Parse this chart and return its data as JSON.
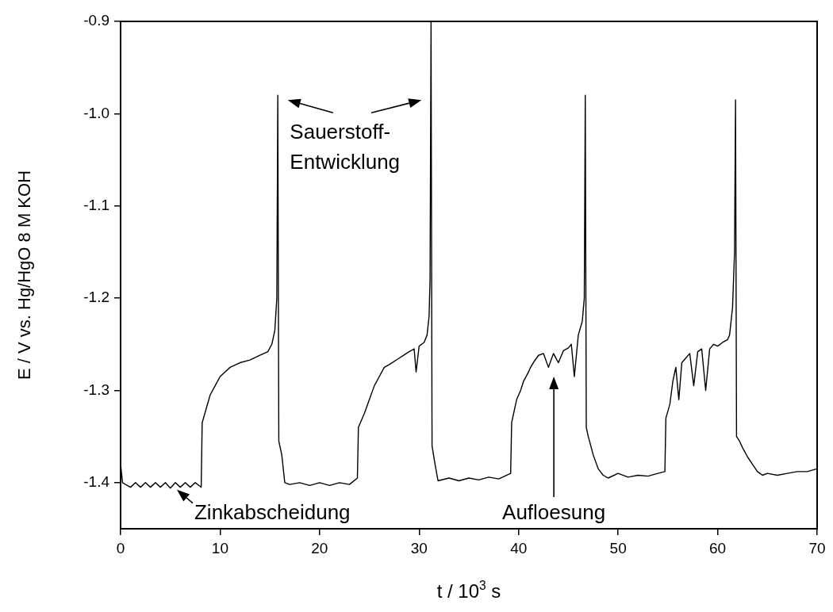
{
  "chart_data": {
    "type": "line",
    "xlabel": "t / 10$^{3}$ s",
    "ylabel": "E / V vs. Hg/HgO 8 M KOH",
    "xlim": [
      0,
      70
    ],
    "ylim": [
      -1.45,
      -0.9
    ],
    "xticks": [
      0,
      10,
      20,
      30,
      40,
      50,
      60,
      70
    ],
    "yticks": [
      -1.4,
      -1.3,
      -1.2,
      -1.1,
      {
        "value": -1,
        "label": "-1.0"
      },
      -0.9
    ],
    "grid": false,
    "legend": false,
    "marker": "none",
    "line_style": "solid",
    "series": [
      {
        "color": "#000000",
        "x": [
          0,
          0.2,
          0.5,
          1,
          1.5,
          2,
          2.5,
          3,
          3.5,
          4,
          4.5,
          5,
          5.5,
          6,
          6.5,
          7,
          7.5,
          8,
          8.1,
          8.2,
          8.6,
          9,
          9.5,
          10,
          10.5,
          11,
          12,
          13,
          14,
          14.8,
          15.2,
          15.5,
          15.7,
          15.8,
          15.9,
          16.2,
          16.5,
          17,
          18,
          19,
          20,
          21,
          22,
          23,
          23.8,
          23.9,
          24.5,
          25,
          25.5,
          26,
          26.5,
          27,
          28,
          29,
          29.5,
          29.7,
          30,
          30.5,
          30.8,
          31,
          31.1,
          31.2,
          31.3,
          31.6,
          31.9,
          33,
          34,
          35,
          36,
          37,
          38,
          39.2,
          39.3,
          39.8,
          40.2,
          40.5,
          41,
          41.2,
          41.6,
          42,
          42.5,
          43,
          43.5,
          44,
          44.5,
          45,
          45.3,
          45.6,
          46,
          46.4,
          46.6,
          46.7,
          46.8,
          47,
          47.5,
          48,
          48.5,
          49,
          50,
          51,
          52,
          53,
          54,
          54.7,
          54.8,
          55.2,
          55.5,
          55.8,
          56.1,
          56.4,
          56.8,
          57.2,
          57.6,
          58,
          58.4,
          58.8,
          59.2,
          59.6,
          60,
          60.5,
          61,
          61.2,
          61.5,
          61.7,
          61.8,
          61.9,
          62.2,
          62.5,
          63,
          63.5,
          64,
          64.5,
          65,
          66,
          67,
          68,
          69,
          70
        ],
        "values": [
          -1.38,
          -1.4,
          -1.402,
          -1.405,
          -1.4,
          -1.405,
          -1.4,
          -1.405,
          -1.4,
          -1.405,
          -1.4,
          -1.406,
          -1.4,
          -1.405,
          -1.4,
          -1.405,
          -1.4,
          -1.404,
          -1.405,
          -1.335,
          -1.32,
          -1.305,
          -1.295,
          -1.285,
          -1.28,
          -1.275,
          -1.27,
          -1.267,
          -1.262,
          -1.258,
          -1.25,
          -1.235,
          -1.2,
          -0.98,
          -1.355,
          -1.37,
          -1.4,
          -1.402,
          -1.4,
          -1.403,
          -1.4,
          -1.403,
          -1.4,
          -1.402,
          -1.395,
          -1.34,
          -1.325,
          -1.31,
          -1.295,
          -1.285,
          -1.275,
          -1.272,
          -1.265,
          -1.258,
          -1.255,
          -1.28,
          -1.252,
          -1.248,
          -1.24,
          -1.22,
          -1.18,
          -0.9,
          -1.36,
          -1.38,
          -1.398,
          -1.395,
          -1.398,
          -1.395,
          -1.397,
          -1.394,
          -1.396,
          -1.39,
          -1.335,
          -1.31,
          -1.3,
          -1.29,
          -1.28,
          -1.275,
          -1.268,
          -1.262,
          -1.26,
          -1.275,
          -1.26,
          -1.27,
          -1.257,
          -1.254,
          -1.25,
          -1.285,
          -1.24,
          -1.225,
          -1.2,
          -0.98,
          -1.34,
          -1.35,
          -1.37,
          -1.385,
          -1.392,
          -1.395,
          -1.39,
          -1.394,
          -1.392,
          -1.393,
          -1.39,
          -1.388,
          -1.33,
          -1.315,
          -1.29,
          -1.275,
          -1.31,
          -1.27,
          -1.265,
          -1.26,
          -1.295,
          -1.258,
          -1.255,
          -1.3,
          -1.255,
          -1.25,
          -1.252,
          -1.248,
          -1.245,
          -1.24,
          -1.21,
          -1.15,
          -0.985,
          -1.35,
          -1.355,
          -1.362,
          -1.372,
          -1.38,
          -1.388,
          -1.392,
          -1.39,
          -1.392,
          -1.39,
          -1.388,
          -1.388,
          -1.385
        ]
      }
    ],
    "annotations": [
      "Sauerstoff-\nEntwicklung",
      {
        "text": "Zinkabscheidung",
        "x": 5.5,
        "y": -1.405
      },
      "Aufloesung"
    ]
  }
}
